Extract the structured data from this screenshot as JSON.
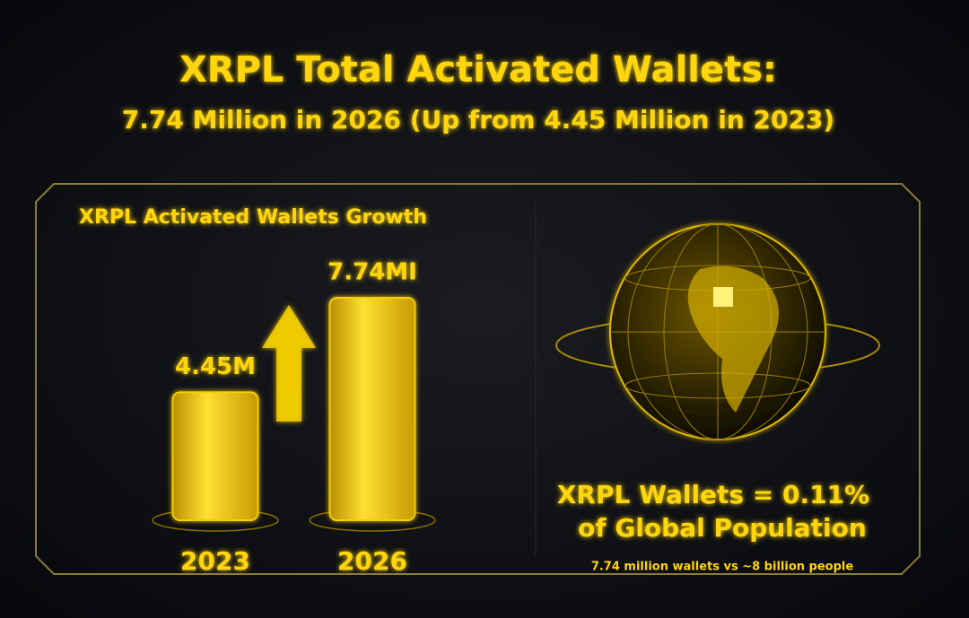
{
  "chart_data": {
    "type": "bar",
    "title": "XRPL Total Activated Wallets:",
    "subtitle": "7.74 Million in 2026 (Up from 4.45 Million in 2023)",
    "chart_title": "XRPL Activated Wallets Growth",
    "categories": [
      "2023",
      "2026"
    ],
    "values": [
      4.45,
      7.74
    ],
    "value_labels": [
      "4.45M",
      "7.74MI"
    ],
    "color": "#f5cf00",
    "annotations": [
      "XRPL Wallets = 0.11%",
      "of Global Population",
      "7.74 million wallets vs ~8 billion people"
    ]
  }
}
